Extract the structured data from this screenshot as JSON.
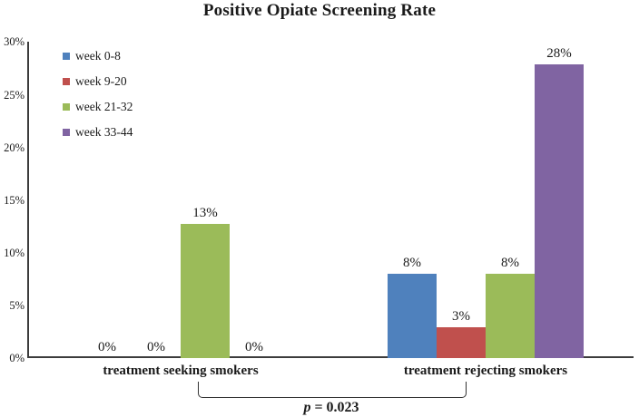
{
  "chart_data": {
    "type": "bar",
    "title": "Positive Opiate Screening Rate",
    "categories": [
      "treatment seeking smokers",
      "treatment rejecting smokers"
    ],
    "series": [
      {
        "name": "week 0-8",
        "color": "#4F81BD",
        "values": [
          0,
          8
        ],
        "labels": [
          "0%",
          "8%"
        ]
      },
      {
        "name": "week 9-20",
        "color": "#C0504D",
        "values": [
          0,
          2.9
        ],
        "labels": [
          "0%",
          "3%"
        ]
      },
      {
        "name": "week 21-32",
        "color": "#9BBB59",
        "values": [
          12.7,
          8
        ],
        "labels": [
          "13%",
          "8%"
        ]
      },
      {
        "name": "week 33-44",
        "color": "#8064A2",
        "values": [
          0,
          27.9
        ],
        "labels": [
          "0%",
          "28%"
        ]
      }
    ],
    "ylim": [
      0,
      30
    ],
    "ytick_step": 5,
    "ytick_labels": [
      "0%",
      "5%",
      "10%",
      "15%",
      "20%",
      "25%",
      "30%"
    ],
    "grid": false,
    "legend_position": "inside-top-left",
    "xlabel": "",
    "ylabel": ""
  },
  "annotation": {
    "variable": "p",
    "rest": " = 0.023"
  }
}
